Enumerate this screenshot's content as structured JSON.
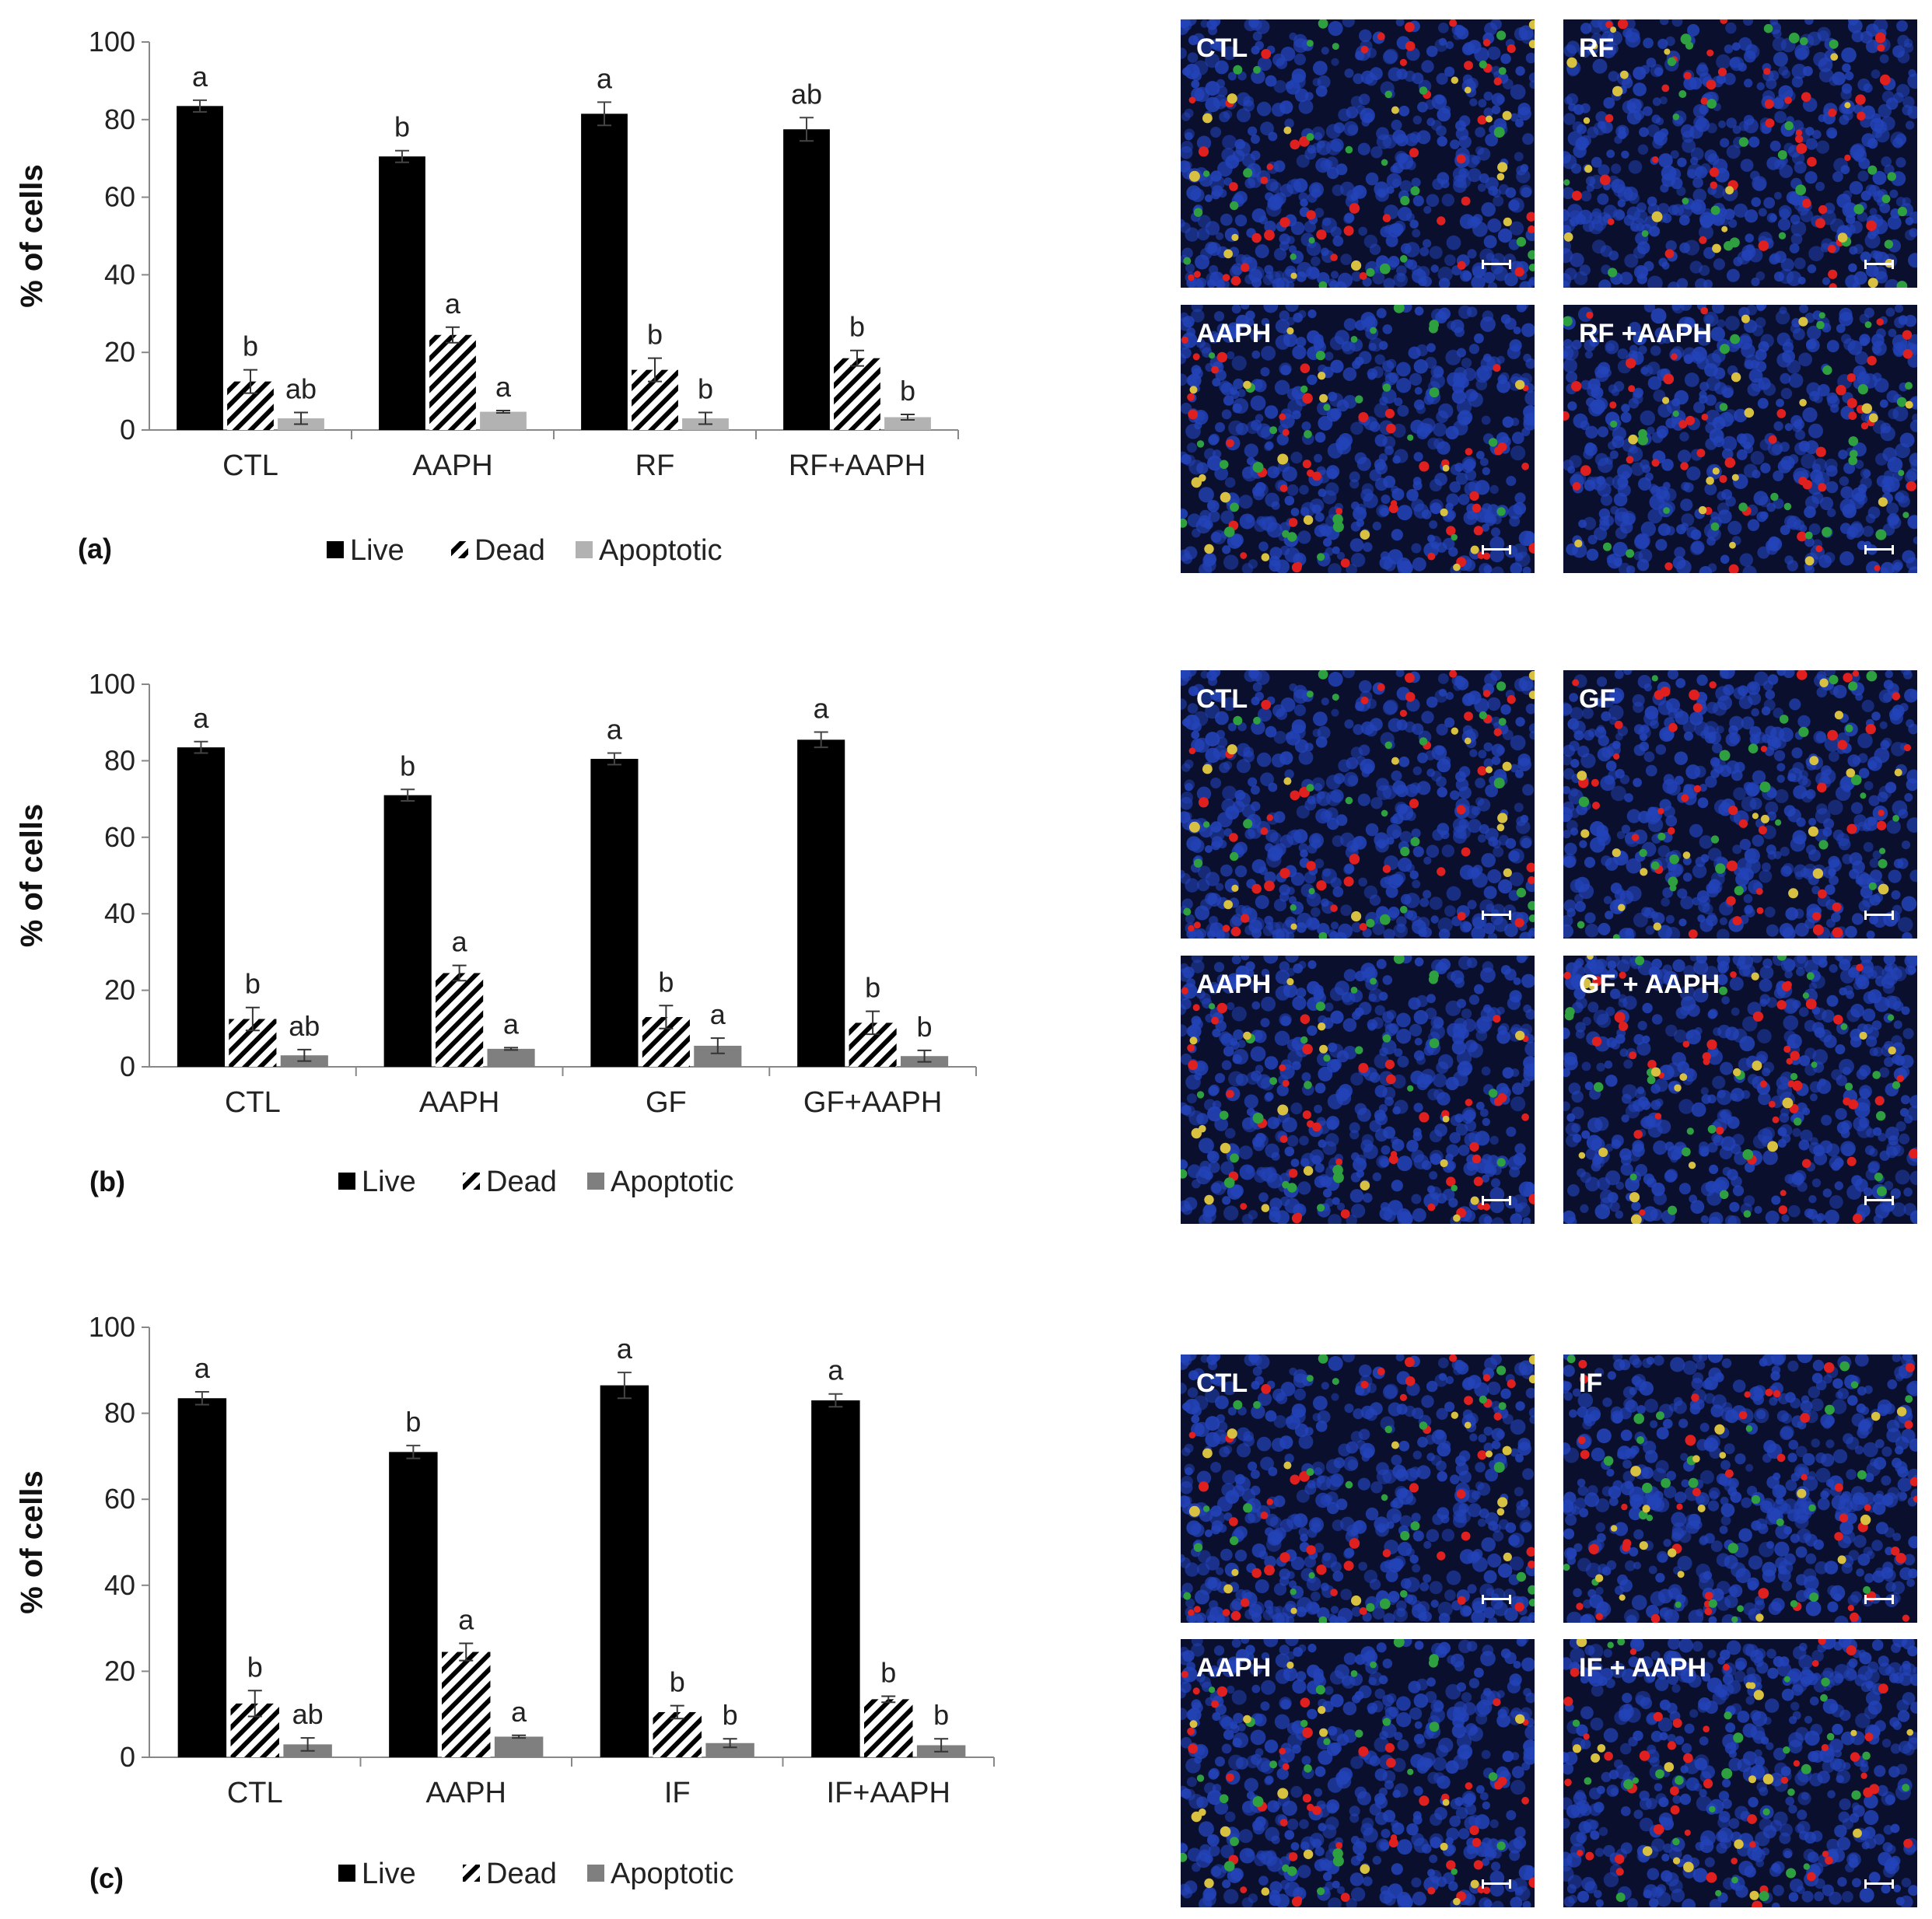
{
  "panels": [
    {
      "id": "a",
      "label": "(a)",
      "chart_data": {
        "type": "bar",
        "ylabel": "% of cells",
        "ylim": [
          0,
          100
        ],
        "yticks": [
          0,
          20,
          40,
          60,
          80,
          100
        ],
        "categories": [
          "CTL",
          "AAPH",
          "RF",
          "RF+AAPH"
        ],
        "series": [
          {
            "name": "Live",
            "values": [
              83.5,
              70.5,
              81.5,
              77.5
            ],
            "errors": [
              1.5,
              1.5,
              3,
              3
            ],
            "letters": [
              "a",
              "b",
              "a",
              "ab"
            ]
          },
          {
            "name": "Dead",
            "values": [
              12.5,
              24.5,
              15.5,
              18.5
            ],
            "errors": [
              3,
              2,
              3,
              2
            ],
            "letters": [
              "b",
              "a",
              "b",
              "b"
            ]
          },
          {
            "name": "Apoptotic",
            "values": [
              3.0,
              4.7,
              3.0,
              3.3
            ],
            "errors": [
              1.5,
              0.3,
              1.5,
              0.7
            ],
            "letters": [
              "ab",
              "a",
              "b",
              "b"
            ]
          }
        ],
        "legend": "bottom",
        "apoptotic_color": "#b2b2b2"
      }
    },
    {
      "id": "b",
      "label": "(b)",
      "chart_data": {
        "type": "bar",
        "ylabel": "% of cells",
        "ylim": [
          0,
          100
        ],
        "yticks": [
          0,
          20,
          40,
          60,
          80,
          100
        ],
        "categories": [
          "CTL",
          "AAPH",
          "GF",
          "GF+AAPH"
        ],
        "series": [
          {
            "name": "Live",
            "values": [
              83.5,
              71,
              80.5,
              85.5
            ],
            "errors": [
              1.5,
              1.5,
              1.5,
              2
            ],
            "letters": [
              "a",
              "b",
              "a",
              "a"
            ]
          },
          {
            "name": "Dead",
            "values": [
              12.5,
              24.5,
              13,
              11.5
            ],
            "errors": [
              3,
              2,
              3,
              3
            ],
            "letters": [
              "b",
              "a",
              "b",
              "b"
            ]
          },
          {
            "name": "Apoptotic",
            "values": [
              3.0,
              4.7,
              5.5,
              2.8
            ],
            "errors": [
              1.5,
              0.3,
              2,
              1.5
            ],
            "letters": [
              "ab",
              "a",
              "a",
              "b"
            ]
          }
        ],
        "legend": "bottom",
        "apoptotic_color": "#7f7f7f"
      }
    },
    {
      "id": "c",
      "label": "(c)",
      "chart_data": {
        "type": "bar",
        "ylabel": "% of cells",
        "ylim": [
          0,
          100
        ],
        "yticks": [
          0,
          20,
          40,
          60,
          80,
          100
        ],
        "categories": [
          "CTL",
          "AAPH",
          "IF",
          "IF+AAPH"
        ],
        "series": [
          {
            "name": "Live",
            "values": [
              83.5,
              71,
              86.5,
              83
            ],
            "errors": [
              1.5,
              1.5,
              3,
              1.5
            ],
            "letters": [
              "a",
              "b",
              "a",
              "a"
            ]
          },
          {
            "name": "Dead",
            "values": [
              12.5,
              24.5,
              10.5,
              13.5
            ],
            "errors": [
              3,
              2,
              1.5,
              0.7
            ],
            "letters": [
              "b",
              "a",
              "b",
              "b"
            ]
          },
          {
            "name": "Apoptotic",
            "values": [
              3.0,
              4.8,
              3.3,
              2.8
            ],
            "errors": [
              1.5,
              0.3,
              1,
              1.5
            ],
            "letters": [
              "ab",
              "a",
              "b",
              "b"
            ]
          }
        ],
        "legend": "bottom",
        "apoptotic_color": "#7f7f7f"
      }
    }
  ],
  "micrographs": [
    {
      "label": "CTL",
      "seed": 11
    },
    {
      "label": "RF",
      "seed": 23
    },
    {
      "label": "AAPH",
      "seed": 37
    },
    {
      "label": "RF +AAPH",
      "seed": 41
    },
    {
      "label": "CTL",
      "seed": 11
    },
    {
      "label": "GF",
      "seed": 53
    },
    {
      "label": "AAPH",
      "seed": 37
    },
    {
      "label": "GF + AAPH",
      "seed": 67
    },
    {
      "label": "CTL",
      "seed": 11
    },
    {
      "label": "IF",
      "seed": 79
    },
    {
      "label": "AAPH",
      "seed": 37
    },
    {
      "label": "IF + AAPH",
      "seed": 83
    }
  ],
  "colors": {
    "live": "#000000",
    "dead_hatch": "#000000",
    "micro_background": "#0a0f2e",
    "micro_blue": "#2343b8",
    "micro_red": "#e0201e",
    "micro_green": "#2fa040",
    "micro_yellow": "#d8c040"
  }
}
